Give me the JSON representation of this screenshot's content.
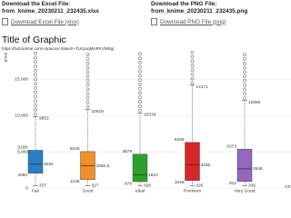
{
  "downloads": [
    {
      "heading": "Download the Excel File:",
      "filename": "from_knime_20230211_232435.xlsx",
      "link": "Download Excel File (xlsx)"
    },
    {
      "heading": "Download the PNG File:",
      "filename": "from_knime_20230211_232435.png",
      "link": "Download PNG File (png)"
    }
  ],
  "graphic": {
    "title": "Title of Graphic",
    "url": "https://hub.knime.com/-/spaces/-/latest/~TLKpoqMHRKVMlsg/"
  },
  "chart_data": {
    "type": "box",
    "y_label": "price",
    "x_label": "cut",
    "categories": [
      "Fair",
      "Good",
      "Ideal",
      "Premium",
      "Very Good"
    ],
    "ylim": [
      0,
      18800
    ],
    "yticks": [
      0,
      {
        "value": 5000,
        "label": "5,000"
      },
      {
        "value": 10000,
        "label": "10,000"
      },
      {
        "value": 15000,
        "label": "15,000"
      }
    ],
    "grid": true,
    "boxes": [
      {
        "color": "#2a7fc4",
        "whisker_high": 9853,
        "q3": 5208,
        "median": 3282,
        "q1": 2050,
        "whisker_low": 337,
        "outliers": [
          10200,
          10800,
          11400,
          12000,
          12600,
          13200,
          13800,
          14400,
          15000,
          15600,
          16200,
          16800,
          17400,
          18000,
          18600
        ]
      },
      {
        "color": "#f28e2b",
        "whisker_high": 10819,
        "q3": 5028,
        "median": 3050.5,
        "q1": 1145,
        "whisker_low": 327,
        "outliers": [
          11200,
          11800,
          12400,
          13000,
          13600,
          14200,
          14800,
          15400,
          16000,
          16600,
          17200,
          17800,
          18400
        ]
      },
      {
        "color": "#2ca02c",
        "whisker_high": 10378,
        "q3": 4679,
        "median": 1810,
        "q1": 878,
        "whisker_low": 326,
        "outliers": [
          10700,
          11300,
          11900,
          12500,
          13100,
          13700,
          14300,
          14900,
          15500,
          16100,
          16700,
          17300,
          17900,
          18500
        ]
      },
      {
        "color": "#d62728",
        "whisker_high": 14171,
        "q3": 6296,
        "median": 3185,
        "q1": 1046,
        "whisker_low": 326,
        "outliers": [
          14500,
          15100,
          15700,
          16300,
          16900,
          17500,
          18100,
          18700
        ]
      },
      {
        "color": "#9467bd",
        "whisker_high": 12060,
        "q3": 5373,
        "median": 2648,
        "q1": 912,
        "whisker_low": 336,
        "outliers": [
          12400,
          13000,
          13600,
          14200,
          14800,
          15400,
          16000,
          16600,
          17200,
          17800,
          18400
        ]
      }
    ]
  }
}
